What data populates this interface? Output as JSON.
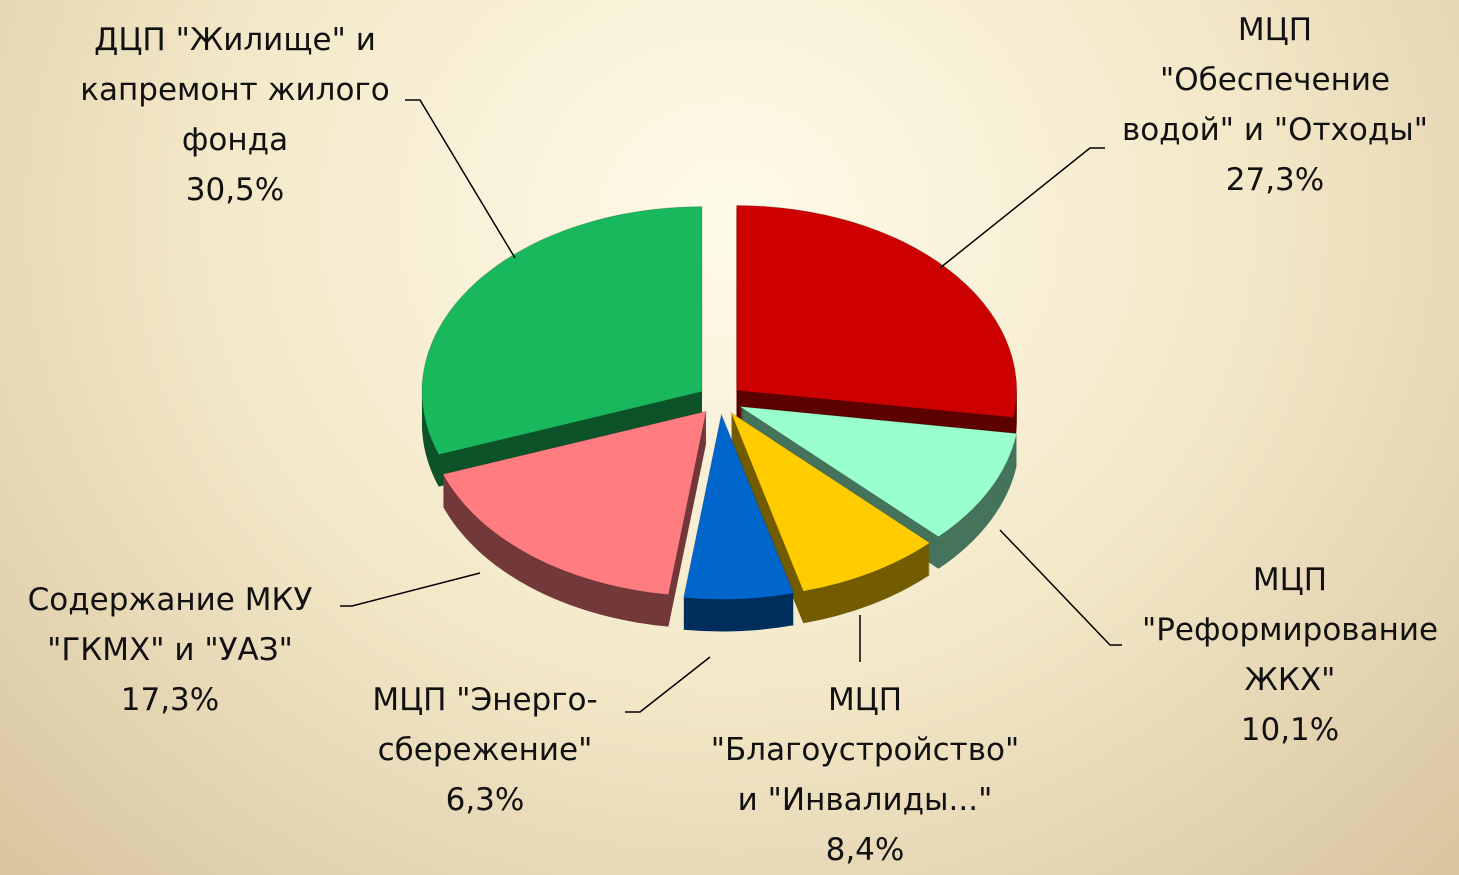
{
  "chart_data": {
    "type": "pie",
    "categories": [
      "МЦП\n\"Обеспечение\nводой\" и \"Отходы\"",
      "МЦП\n\"Реформирование\nЖКХ\"",
      "МЦП\n\"Благоустройство\"\nи \"Инвалиды...\"",
      "МЦП \"Энерго-\nсбережение\"",
      "Содержание МКУ\n\"ГКМХ\" и \"УАЗ\"",
      "ДЦП \"Жилище\" и\nкапремонт жилого\nфонда"
    ],
    "values": [
      27.3,
      10.1,
      8.4,
      6.3,
      17.3,
      30.5
    ],
    "value_labels": [
      "27,3%",
      "10,1%",
      "8,4%",
      "6,3%",
      "17,3%",
      "30,5%"
    ],
    "colors": [
      "#cc0000",
      "#99ffcc",
      "#ffcc00",
      "#0066cc",
      "#ff7c80",
      "#1ab85c"
    ]
  }
}
